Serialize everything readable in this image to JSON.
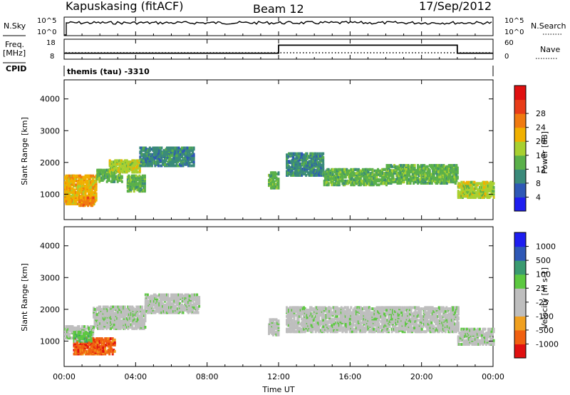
{
  "header": {
    "station": "Kapuskasing (fitACF)",
    "beam": "Beam 12",
    "date": "17/Sep/2012"
  },
  "panels": {
    "nsky": {
      "label": "N.Sky",
      "right_label": "N.Search",
      "ytick_top": "10^5",
      "ytick_bottom": "10^0"
    },
    "freq": {
      "label_line1": "Freq.",
      "label_line2": "[MHz]",
      "right_label": "Nave",
      "ytick_top": "18",
      "ytick_bottom": "8",
      "rtick_top": "60",
      "rtick_bottom": "0"
    },
    "cpid": {
      "label": "CPID",
      "value": "themis (tau) -3310"
    }
  },
  "colors": {
    "power": [
      "#1e1ef0",
      "#2e58b6",
      "#3a8a7a",
      "#5ab04a",
      "#a8d030",
      "#f0b000",
      "#f07a10",
      "#e83c18",
      "#e01010"
    ],
    "velocity": [
      "#e01010",
      "#f06010",
      "#f0a020",
      "#bebebe",
      "#bebebe",
      "#5cc840",
      "#3a9a70",
      "#2e58b6",
      "#1e1ef0"
    ]
  },
  "chart_data": [
    {
      "type": "heatmap",
      "name": "power",
      "ylabel": "Slant Range [km]",
      "ylim": [
        200,
        4600
      ],
      "yticks": [
        "1000",
        "2000",
        "3000",
        "4000"
      ],
      "xlim": [
        0,
        24
      ],
      "colorbar": {
        "label": "Power [dB]",
        "ticks": [
          "4",
          "8",
          "12",
          "16",
          "20",
          "24",
          "28"
        ]
      },
      "bands": [
        {
          "t0": 0.0,
          "t1": 1.8,
          "r0": 700,
          "r1": 1600,
          "level": 5
        },
        {
          "t0": 0.8,
          "t1": 1.6,
          "r0": 650,
          "r1": 900,
          "level": 6
        },
        {
          "t0": 1.8,
          "t1": 3.2,
          "r0": 1400,
          "r1": 1800,
          "level": 3
        },
        {
          "t0": 2.5,
          "t1": 4.2,
          "r0": 1700,
          "r1": 2100,
          "level": 4
        },
        {
          "t0": 4.2,
          "t1": 7.2,
          "r0": 1900,
          "r1": 2500,
          "level": 2
        },
        {
          "t0": 3.5,
          "t1": 4.5,
          "r0": 1100,
          "r1": 1600,
          "level": 3
        },
        {
          "t0": 11.4,
          "t1": 12.0,
          "r0": 1200,
          "r1": 1700,
          "level": 3
        },
        {
          "t0": 12.4,
          "t1": 14.5,
          "r0": 1600,
          "r1": 2300,
          "level": 2
        },
        {
          "t0": 14.5,
          "t1": 18.0,
          "r0": 1300,
          "r1": 1800,
          "level": 3
        },
        {
          "t0": 18.0,
          "t1": 22.0,
          "r0": 1350,
          "r1": 1950,
          "level": 3
        },
        {
          "t0": 22.0,
          "t1": 24.0,
          "r0": 900,
          "r1": 1400,
          "level": 4
        }
      ]
    },
    {
      "type": "heatmap",
      "name": "velocity",
      "ylabel": "Slant Range [km]",
      "ylim": [
        200,
        4600
      ],
      "yticks": [
        "1000",
        "2000",
        "3000",
        "4000"
      ],
      "xlim": [
        0,
        24
      ],
      "xticks": [
        "00:00",
        "04:00",
        "08:00",
        "12:00",
        "16:00",
        "20:00",
        "00:00"
      ],
      "xlabel": "Time UT",
      "colorbar": {
        "label": "Velocity [m s-1]",
        "ticks": [
          "1000",
          "500",
          "100",
          "25",
          "-25",
          "-100",
          "-500",
          "-1000"
        ]
      },
      "bands": [
        {
          "t0": 0.0,
          "t1": 1.6,
          "r0": 1100,
          "r1": 1500,
          "level": 4
        },
        {
          "t0": 0.5,
          "t1": 2.8,
          "r0": 600,
          "r1": 1100,
          "level": 1
        },
        {
          "t0": 0.5,
          "t1": 1.5,
          "r0": 1000,
          "r1": 1300,
          "level": 5
        },
        {
          "t0": 1.6,
          "t1": 4.5,
          "r0": 1400,
          "r1": 2100,
          "level": 4
        },
        {
          "t0": 4.5,
          "t1": 7.5,
          "r0": 1900,
          "r1": 2500,
          "level": 4
        },
        {
          "t0": 11.4,
          "t1": 12.0,
          "r0": 1200,
          "r1": 1700,
          "level": 4
        },
        {
          "t0": 12.4,
          "t1": 22.0,
          "r0": 1300,
          "r1": 2100,
          "level": 4
        },
        {
          "t0": 22.0,
          "t1": 24.0,
          "r0": 900,
          "r1": 1400,
          "level": 4
        }
      ]
    }
  ],
  "freq_series": {
    "x": [
      0,
      12,
      12,
      22,
      22,
      24
    ],
    "y": [
      11,
      11,
      15,
      15,
      11,
      11
    ]
  }
}
